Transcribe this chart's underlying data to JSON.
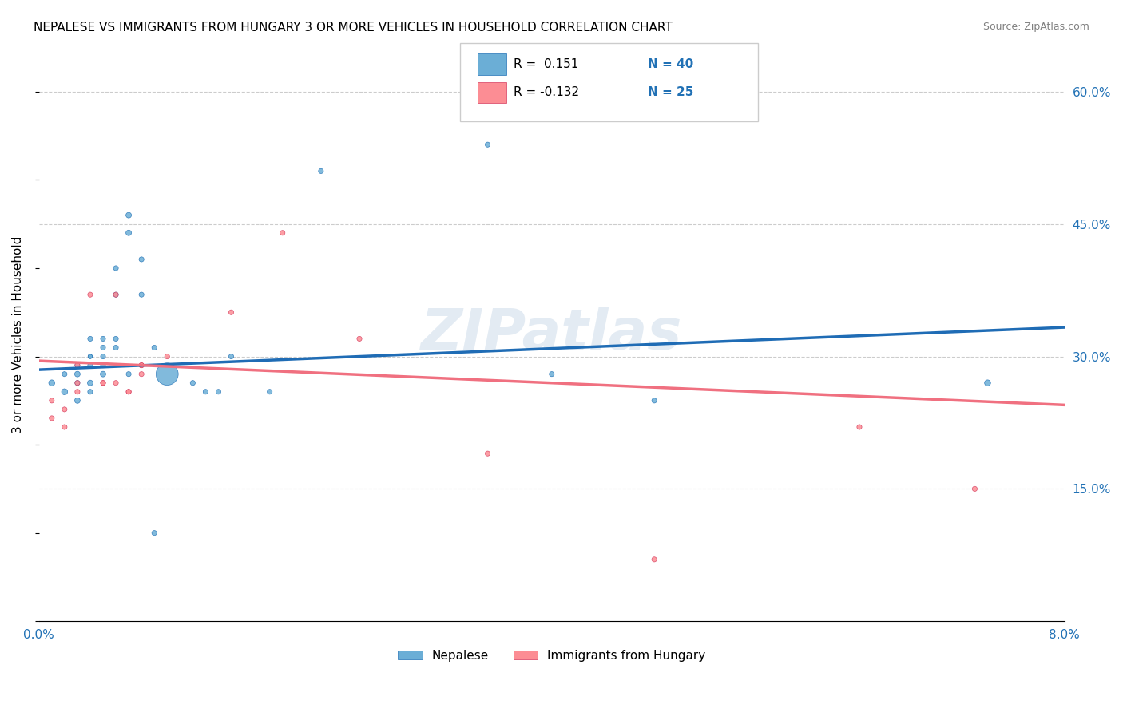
{
  "title": "NEPALESE VS IMMIGRANTS FROM HUNGARY 3 OR MORE VEHICLES IN HOUSEHOLD CORRELATION CHART",
  "source": "Source: ZipAtlas.com",
  "ylabel": "3 or more Vehicles in Household",
  "xlim": [
    0.0,
    0.08
  ],
  "ylim": [
    0.0,
    0.65
  ],
  "xticks": [
    0.0,
    0.016,
    0.032,
    0.048,
    0.064,
    0.08
  ],
  "xtick_labels": [
    "0.0%",
    "",
    "",
    "",
    "",
    "8.0%"
  ],
  "yticks_right": [
    0.15,
    0.3,
    0.45,
    0.6
  ],
  "ytick_right_labels": [
    "15.0%",
    "30.0%",
    "45.0%",
    "60.0%"
  ],
  "blue_color": "#6baed6",
  "pink_color": "#fc8d94",
  "dark_blue": "#2171b5",
  "dark_pink": "#d63b5e",
  "line_blue": "#1f6cb5",
  "line_pink": "#f07080",
  "legend_R1": "R =  0.151",
  "legend_N1": "N = 40",
  "legend_R2": "R = -0.132",
  "legend_N2": "N = 25",
  "legend_label1": "Nepalese",
  "legend_label2": "Immigrants from Hungary",
  "watermark": "ZIPatlas",
  "blue_scatter_x": [
    0.001,
    0.002,
    0.002,
    0.003,
    0.003,
    0.003,
    0.003,
    0.004,
    0.004,
    0.004,
    0.004,
    0.004,
    0.004,
    0.005,
    0.005,
    0.005,
    0.005,
    0.005,
    0.006,
    0.006,
    0.006,
    0.006,
    0.007,
    0.007,
    0.007,
    0.008,
    0.008,
    0.009,
    0.009,
    0.01,
    0.012,
    0.013,
    0.014,
    0.015,
    0.018,
    0.022,
    0.035,
    0.04,
    0.048,
    0.074
  ],
  "blue_scatter_y": [
    0.27,
    0.28,
    0.26,
    0.29,
    0.28,
    0.27,
    0.25,
    0.3,
    0.3,
    0.32,
    0.29,
    0.27,
    0.26,
    0.32,
    0.31,
    0.3,
    0.29,
    0.28,
    0.4,
    0.37,
    0.32,
    0.31,
    0.46,
    0.44,
    0.28,
    0.41,
    0.37,
    0.31,
    0.1,
    0.28,
    0.27,
    0.26,
    0.26,
    0.3,
    0.26,
    0.51,
    0.54,
    0.28,
    0.25,
    0.27
  ],
  "blue_scatter_size": [
    30,
    20,
    30,
    20,
    25,
    20,
    25,
    15,
    15,
    20,
    20,
    25,
    20,
    20,
    20,
    20,
    20,
    25,
    20,
    20,
    20,
    20,
    25,
    25,
    20,
    20,
    20,
    20,
    20,
    400,
    20,
    20,
    20,
    20,
    20,
    20,
    20,
    20,
    20,
    30
  ],
  "pink_scatter_x": [
    0.001,
    0.001,
    0.002,
    0.002,
    0.003,
    0.003,
    0.003,
    0.004,
    0.005,
    0.005,
    0.006,
    0.006,
    0.007,
    0.007,
    0.008,
    0.008,
    0.008,
    0.01,
    0.015,
    0.019,
    0.025,
    0.035,
    0.048,
    0.064,
    0.073
  ],
  "pink_scatter_y": [
    0.25,
    0.23,
    0.24,
    0.22,
    0.29,
    0.27,
    0.26,
    0.37,
    0.27,
    0.27,
    0.37,
    0.27,
    0.26,
    0.26,
    0.29,
    0.29,
    0.28,
    0.3,
    0.35,
    0.44,
    0.32,
    0.19,
    0.07,
    0.22,
    0.15
  ],
  "pink_scatter_size": [
    20,
    20,
    20,
    20,
    20,
    20,
    20,
    20,
    20,
    20,
    20,
    20,
    20,
    20,
    20,
    20,
    20,
    20,
    20,
    20,
    20,
    20,
    20,
    20,
    20
  ],
  "blue_trendline_x": [
    0.0,
    0.08
  ],
  "blue_trendline_y": [
    0.285,
    0.333
  ],
  "pink_trendline_x": [
    0.0,
    0.08
  ],
  "pink_trendline_y": [
    0.295,
    0.245
  ]
}
